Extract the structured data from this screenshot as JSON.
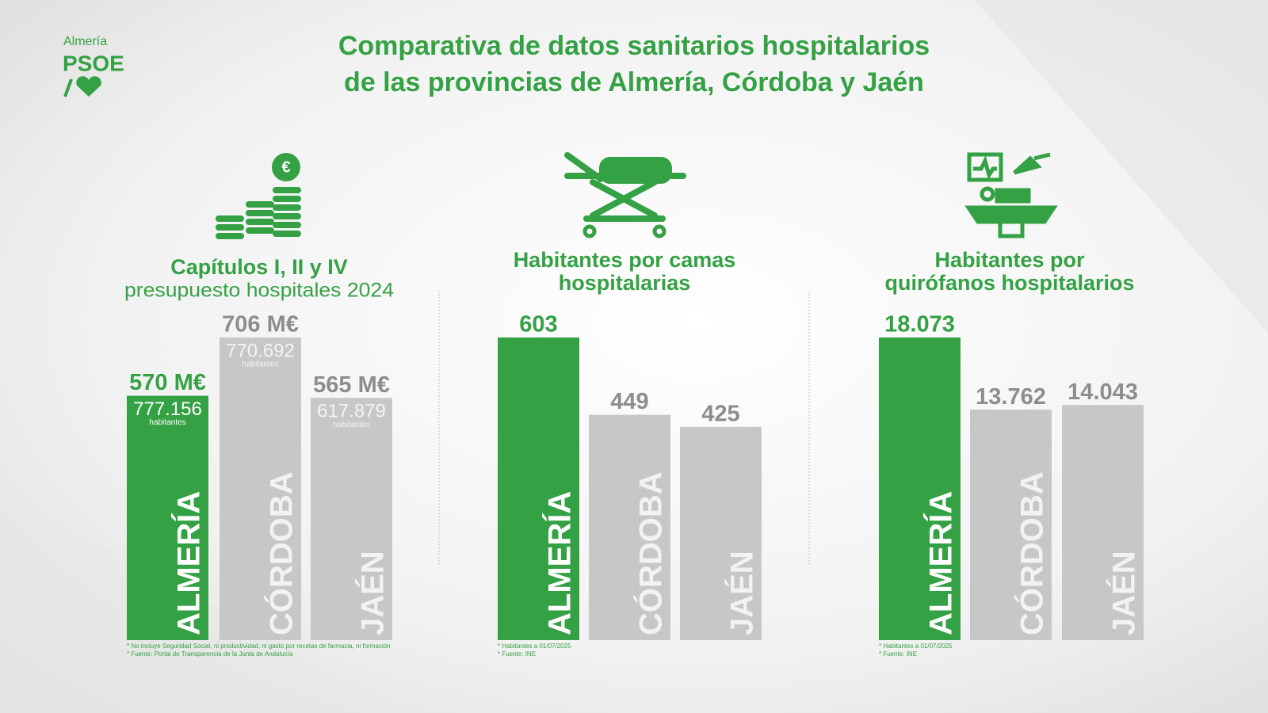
{
  "logo": {
    "city": "Almería",
    "party": "PSOE"
  },
  "title": [
    "Comparativa de datos sanitarios hospitalarios",
    "de las provincias de Almería, Córdoba y Jaén"
  ],
  "chart_data": [
    {
      "type": "bar",
      "title": [
        "Capítulos I, II y IV"
      ],
      "subtitle": "presupuesto hospitales 2024",
      "categories": [
        "ALMERÍA",
        "CÓRDOBA",
        "JAÉN"
      ],
      "values": [
        570,
        706,
        565
      ],
      "value_labels": [
        "570 M€",
        "706 M€",
        "565 M€"
      ],
      "population_labels": [
        "777.156",
        "770.692",
        "617.879"
      ],
      "population_unit": "habitantes",
      "colors": [
        "#34a144",
        "#c7c7c7",
        "#c7c7c7"
      ],
      "notes": [
        "* No incluye Seguridad Social, ni productividad, ni gasto por recetas de farmacia, ni formación",
        "* Fuente: Portal de Transparencia de la Junta de Andalucía"
      ]
    },
    {
      "type": "bar",
      "title": [
        "Habitantes por camas",
        "hospitalarias"
      ],
      "categories": [
        "ALMERÍA",
        "CÓRDOBA",
        "JAÉN"
      ],
      "values": [
        603,
        449,
        425
      ],
      "colors": [
        "#34a144",
        "#c7c7c7",
        "#c7c7c7"
      ],
      "notes": [
        "* Habitantes a 01/07/2025",
        "* Fuente: INE"
      ]
    },
    {
      "type": "bar",
      "title": [
        "Habitantes por",
        "quirófanos hospitalarios"
      ],
      "categories": [
        "ALMERÍA",
        "CÓRDOBA",
        "JAÉN"
      ],
      "values": [
        18073,
        13762,
        14043
      ],
      "value_labels": [
        "18.073",
        "13.762",
        "14.043"
      ],
      "colors": [
        "#34a144",
        "#c7c7c7",
        "#c7c7c7"
      ],
      "notes": [
        "* Habitantes a 01/07/2025",
        "* Fuente: INE"
      ]
    }
  ]
}
